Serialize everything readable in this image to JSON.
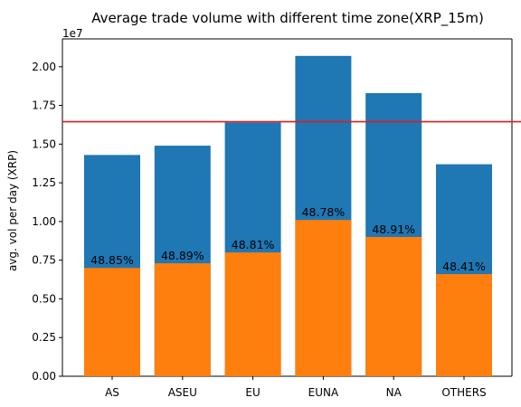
{
  "chart_data": {
    "type": "bar",
    "title": "Average trade volume with different time zone(XRP_15m)",
    "xlabel": "",
    "ylabel": "avg. vol per day (XRP)",
    "y_scale_label": "1e7",
    "ylim": [
      0,
      2.18
    ],
    "y_ticks": [
      "0.00",
      "0.25",
      "0.50",
      "0.75",
      "1.00",
      "1.25",
      "1.50",
      "1.75",
      "2.00"
    ],
    "y_tick_values": [
      0,
      0.25,
      0.5,
      0.75,
      1.0,
      1.25,
      1.5,
      1.75,
      2.0
    ],
    "categories": [
      "AS",
      "ASEU",
      "EU",
      "EUNA",
      "NA",
      "OTHERS"
    ],
    "series": [
      {
        "values": [
          1.43,
          1.49,
          1.64,
          2.07,
          1.83,
          1.37
        ],
        "color": "#1f77b4"
      },
      {
        "values": [
          0.7,
          0.73,
          0.8,
          1.01,
          0.9,
          0.66
        ],
        "color": "#ff7f0e"
      }
    ],
    "bar_labels": [
      "48.85%",
      "48.89%",
      "48.81%",
      "48.78%",
      "48.91%",
      "48.41%"
    ],
    "reference_line": {
      "value": 1.645,
      "color": "#e41a1c"
    },
    "grid": false,
    "legend": "none"
  }
}
